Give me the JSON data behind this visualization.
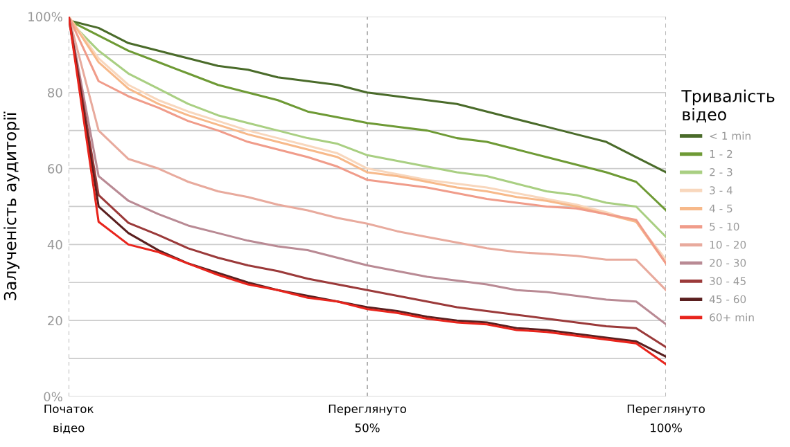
{
  "chart_data": {
    "type": "line",
    "ylabel": "Залученість аудиторії",
    "legend_title": "Тривалість\nвідео",
    "legend": "right",
    "grid": true,
    "marker": "none",
    "line_style": "solid",
    "categories": [
      "Початок\nвідео",
      null,
      null,
      null,
      null,
      null,
      null,
      null,
      null,
      null,
      "Переглянуто\n50%",
      null,
      null,
      null,
      null,
      null,
      null,
      null,
      null,
      null,
      "Переглянуто\n100%"
    ],
    "ylim": [
      0,
      100
    ],
    "yticks": [
      {
        "value": 0,
        "label": "0%"
      },
      {
        "value": 10,
        "label": null
      },
      20,
      {
        "value": 30,
        "label": null
      },
      40,
      {
        "value": 50,
        "label": null
      },
      60,
      {
        "value": 70,
        "label": null
      },
      80,
      {
        "value": 90,
        "label": null
      },
      {
        "value": 100,
        "label": "100%"
      }
    ],
    "series": [
      {
        "name": "< 1 min",
        "color": "#4a6b2a",
        "values": [
          99,
          97,
          93,
          91,
          89,
          87,
          86,
          84,
          83,
          82,
          80,
          79,
          78,
          77,
          75,
          73,
          71,
          69,
          67,
          63,
          59
        ]
      },
      {
        "name": "1 - 2",
        "color": "#6e9a35",
        "values": [
          99,
          95,
          91,
          88,
          85,
          82,
          80,
          78,
          75,
          73.5,
          72,
          71,
          70,
          68,
          67,
          65,
          63,
          61,
          59,
          56.5,
          49
        ]
      },
      {
        "name": "2 - 3",
        "color": "#a9cf82",
        "values": [
          99,
          91,
          85,
          81,
          77,
          74,
          72,
          70,
          68,
          66.5,
          63.5,
          62,
          60.5,
          59,
          58,
          56,
          54,
          53,
          51,
          50,
          42
        ]
      },
      {
        "name": "3 - 4",
        "color": "#f8d7bd",
        "values": [
          100,
          89,
          82,
          78,
          75,
          72.5,
          70,
          68,
          66,
          64,
          60,
          58.5,
          57,
          56,
          55,
          53.5,
          52,
          50.5,
          48.5,
          46,
          36
        ]
      },
      {
        "name": "4 - 5",
        "color": "#f7b98a",
        "values": [
          100,
          88,
          81,
          77,
          74,
          71.5,
          69,
          67,
          65,
          63,
          59,
          58,
          56.5,
          55,
          54,
          52.5,
          51.5,
          50,
          48,
          46,
          35
        ]
      },
      {
        "name": "5 - 10",
        "color": "#f09c8a",
        "values": [
          100,
          83,
          79,
          76,
          72.5,
          70,
          67,
          65,
          63,
          60.5,
          57,
          56,
          55,
          53.5,
          52,
          51,
          50,
          49.5,
          48,
          46.5,
          35
        ]
      },
      {
        "name": "10 - 20",
        "color": "#e8aa9d",
        "values": [
          100,
          70,
          62.5,
          60,
          56.5,
          54,
          52.5,
          50.5,
          49,
          47,
          45.5,
          43.5,
          42,
          40.5,
          39,
          38,
          37.5,
          37,
          36,
          36,
          28
        ]
      },
      {
        "name": "20 - 30",
        "color": "#b98a94",
        "values": [
          100,
          58,
          51.5,
          48,
          45,
          43,
          41,
          39.5,
          38.5,
          36.5,
          34.5,
          33,
          31.5,
          30.5,
          29.5,
          28,
          27.5,
          26.5,
          25.5,
          25,
          19
        ]
      },
      {
        "name": "30 - 45",
        "color": "#9b3a3a",
        "values": [
          100,
          53,
          45.7,
          42.5,
          39,
          36.5,
          34.5,
          33,
          31,
          29.5,
          28,
          26.5,
          25,
          23.5,
          22.5,
          21.5,
          20.5,
          19.5,
          18.5,
          18,
          13
        ]
      },
      {
        "name": "45 - 60",
        "color": "#5a1f1f",
        "values": [
          100,
          50,
          43,
          38.5,
          35,
          32.5,
          30,
          28,
          26.5,
          25,
          23.5,
          22.5,
          21,
          20,
          19.5,
          18,
          17.5,
          16.5,
          15.5,
          14.5,
          10.5
        ]
      },
      {
        "name": "60+ min",
        "color": "#e8241c",
        "values": [
          100,
          46,
          40,
          38,
          35,
          32,
          29.5,
          28,
          26,
          25,
          23,
          22,
          20.5,
          19.5,
          19,
          17.5,
          17,
          16,
          15,
          14,
          8.5
        ]
      }
    ]
  }
}
